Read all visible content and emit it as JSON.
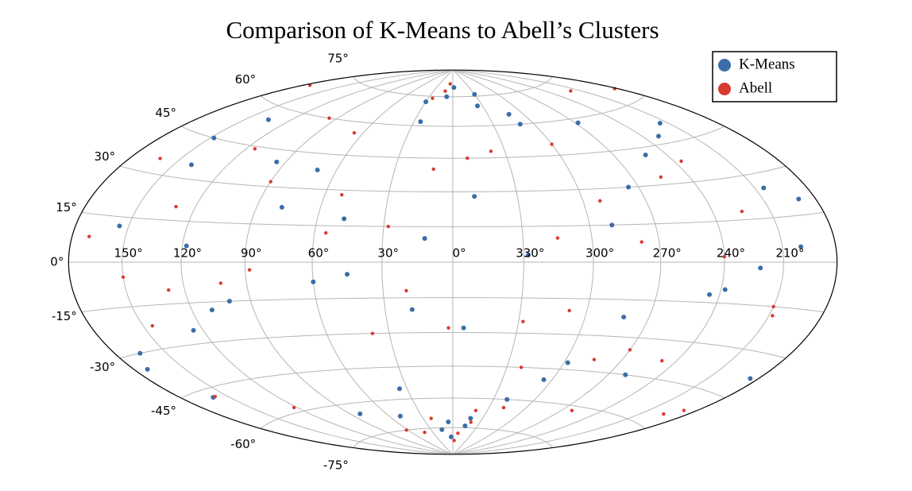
{
  "chart_data": {
    "type": "scatter",
    "projection": "hammer",
    "title": "Comparison of K-Means to Abell’s Clusters",
    "grid": true,
    "legend": "upper right",
    "xlim": [
      0,
      360
    ],
    "ylim": [
      -90,
      90
    ],
    "xticks": [
      {
        "value": 150,
        "label": "150°"
      },
      {
        "value": 120,
        "label": "120°"
      },
      {
        "value": 90,
        "label": "90°"
      },
      {
        "value": 60,
        "label": "60°"
      },
      {
        "value": 30,
        "label": "30°"
      },
      {
        "value": 0,
        "label": "0°"
      },
      {
        "value": 330,
        "label": "330°"
      },
      {
        "value": 300,
        "label": "300°"
      },
      {
        "value": 270,
        "label": "270°"
      },
      {
        "value": 240,
        "label": "240°"
      },
      {
        "value": 210,
        "label": "210°"
      }
    ],
    "yticks": [
      {
        "value": -75,
        "label": "-75°"
      },
      {
        "value": -60,
        "label": "-60°"
      },
      {
        "value": -45,
        "label": "-45°"
      },
      {
        "value": -30,
        "label": "-30°"
      },
      {
        "value": -15,
        "label": "-15°"
      },
      {
        "value": 0,
        "label": "0°"
      },
      {
        "value": 15,
        "label": "15°"
      },
      {
        "value": 30,
        "label": "30°"
      },
      {
        "value": 45,
        "label": "45°"
      },
      {
        "value": 60,
        "label": "60°"
      },
      {
        "value": 75,
        "label": "75°"
      }
    ],
    "series": [
      {
        "name": "K-Means",
        "color": "#3b6ea8",
        "x": [
          12,
          45,
          78,
          110,
          140,
          165,
          200,
          230,
          260,
          290,
          320,
          350,
          5,
          25,
          60,
          95,
          125,
          155,
          185,
          215,
          245,
          275,
          305,
          335,
          18,
          48,
          82,
          118,
          148,
          172,
          205,
          238,
          268,
          298,
          328,
          355,
          8,
          35,
          70,
          100,
          135,
          160,
          190,
          222,
          252,
          282,
          312,
          342,
          3,
          358,
          15,
          345,
          30,
          330,
          50,
          310
        ],
        "y": [
          10,
          -5,
          22,
          -18,
          35,
          -30,
          5,
          48,
          -45,
          15,
          -60,
          28,
          -72,
          62,
          -8,
          40,
          -25,
          12,
          -38,
          52,
          -12,
          30,
          -50,
          70,
          -20,
          18,
          -65,
          6,
          45,
          -35,
          25,
          -10,
          58,
          -42,
          3,
          -28,
          75,
          -55,
          38,
          -15,
          55,
          -48,
          20,
          -2,
          42,
          -22,
          65,
          -70,
          -80,
          80,
          -76,
          -74,
          72,
          76,
          -68,
          60
        ]
      },
      {
        "name": "Abell",
        "color": "#d93a2f",
        "x": [
          20,
          52,
          88,
          115,
          145,
          170,
          195,
          225,
          255,
          285,
          315,
          340,
          10,
          38,
          66,
          102,
          130,
          158,
          182,
          210,
          240,
          270,
          300,
          328,
          22,
          55,
          90,
          122,
          150,
          176,
          208,
          236,
          262,
          292,
          322,
          352,
          2,
          28,
          62,
          96,
          128,
          162,
          188,
          218,
          248,
          278,
          308,
          338,
          357,
          6,
          352,
          12,
          340,
          25,
          318,
          42
        ],
        "y": [
          -12,
          28,
          -3,
          44,
          -22,
          8,
          -55,
          18,
          33,
          -40,
          10,
          -66,
          40,
          -30,
          55,
          -8,
          20,
          -48,
          65,
          -15,
          2,
          -35,
          50,
          -25,
          -70,
          12,
          32,
          -58,
          -5,
          68,
          -18,
          38,
          -62,
          25,
          -45,
          45,
          -28,
          15,
          -75,
          60,
          -10,
          35,
          -52,
          70,
          -38,
          8,
          -20,
          48,
          -82,
          82,
          -78,
          78,
          -72,
          74,
          -64,
          -77
        ]
      }
    ]
  }
}
